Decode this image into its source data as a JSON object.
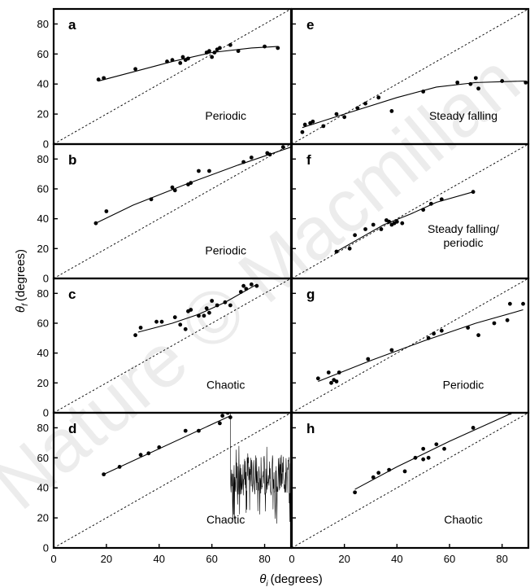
{
  "figure": {
    "ylabel_main": "θ",
    "ylabel_sub": "f",
    "ylabel_unit": "(degrees)",
    "xlabel_main": "θ",
    "xlabel_sub": "i",
    "xlabel_unit": "(degrees)",
    "watermark": "Nature © Macmillan"
  },
  "chart_data": [
    {
      "panel": "a",
      "type": "scatter",
      "label": "Periodic",
      "xlim": [
        0,
        90
      ],
      "ylim": [
        0,
        90
      ],
      "yticks": [
        "0",
        "20",
        "40",
        "60",
        "80"
      ],
      "xticks": [],
      "points": [
        [
          17,
          43
        ],
        [
          19,
          44
        ],
        [
          31,
          50
        ],
        [
          43,
          55
        ],
        [
          45,
          56
        ],
        [
          48,
          54
        ],
        [
          49,
          58
        ],
        [
          50,
          56
        ],
        [
          51,
          57
        ],
        [
          58,
          61
        ],
        [
          59,
          62
        ],
        [
          60,
          58
        ],
        [
          61,
          61
        ],
        [
          62,
          63
        ],
        [
          63,
          64
        ],
        [
          67,
          66
        ],
        [
          70,
          62
        ],
        [
          80,
          65
        ],
        [
          85,
          64
        ]
      ],
      "fit": [
        [
          17,
          42
        ],
        [
          30,
          48
        ],
        [
          45,
          55
        ],
        [
          60,
          61
        ],
        [
          75,
          64
        ],
        [
          85,
          65
        ]
      ],
      "diagonal": true
    },
    {
      "panel": "e",
      "type": "scatter",
      "label": "Steady falling",
      "xlim": [
        0,
        90
      ],
      "ylim": [
        0,
        90
      ],
      "yticks": [],
      "xticks": [],
      "points": [
        [
          4,
          8
        ],
        [
          5,
          13
        ],
        [
          7,
          14
        ],
        [
          8,
          15
        ],
        [
          12,
          12
        ],
        [
          17,
          20
        ],
        [
          20,
          18
        ],
        [
          25,
          24
        ],
        [
          28,
          27
        ],
        [
          33,
          31
        ],
        [
          38,
          22
        ],
        [
          50,
          35
        ],
        [
          63,
          41
        ],
        [
          68,
          40
        ],
        [
          70,
          44
        ],
        [
          71,
          37
        ],
        [
          80,
          42
        ],
        [
          89,
          41
        ]
      ],
      "fit": [
        [
          4,
          11
        ],
        [
          20,
          20
        ],
        [
          40,
          31
        ],
        [
          55,
          38
        ],
        [
          70,
          41
        ],
        [
          89,
          42
        ]
      ],
      "diagonal": true
    },
    {
      "panel": "b",
      "type": "scatter",
      "label": "Periodic",
      "xlim": [
        0,
        90
      ],
      "ylim": [
        0,
        90
      ],
      "yticks": [
        "0",
        "20",
        "40",
        "60",
        "80"
      ],
      "xticks": [],
      "points": [
        [
          16,
          37
        ],
        [
          20,
          45
        ],
        [
          37,
          53
        ],
        [
          45,
          61
        ],
        [
          46,
          59
        ],
        [
          51,
          63
        ],
        [
          52,
          64
        ],
        [
          55,
          72
        ],
        [
          59,
          72
        ],
        [
          72,
          78
        ],
        [
          75,
          81
        ],
        [
          81,
          84
        ],
        [
          82,
          83
        ],
        [
          87,
          88
        ]
      ],
      "fit": [
        [
          16,
          37
        ],
        [
          30,
          49
        ],
        [
          50,
          63
        ],
        [
          70,
          76
        ],
        [
          90,
          88
        ]
      ],
      "diagonal": true
    },
    {
      "panel": "f",
      "type": "scatter",
      "label": "Steady falling/\nperiodic",
      "xlim": [
        0,
        90
      ],
      "ylim": [
        0,
        90
      ],
      "yticks": [],
      "xticks": [],
      "points": [
        [
          17,
          18
        ],
        [
          22,
          20
        ],
        [
          24,
          29
        ],
        [
          28,
          33
        ],
        [
          31,
          36
        ],
        [
          34,
          33
        ],
        [
          36,
          39
        ],
        [
          37,
          38
        ],
        [
          38,
          36
        ],
        [
          39,
          37
        ],
        [
          40,
          38
        ],
        [
          42,
          37
        ],
        [
          50,
          46
        ],
        [
          53,
          50
        ],
        [
          57,
          53
        ],
        [
          69,
          58
        ]
      ],
      "fit": [
        [
          17,
          18
        ],
        [
          25,
          26
        ],
        [
          35,
          36
        ],
        [
          45,
          43
        ],
        [
          55,
          51
        ],
        [
          69,
          58
        ]
      ],
      "diagonal": true
    },
    {
      "panel": "c",
      "type": "scatter",
      "label": "Chaotic",
      "xlim": [
        0,
        90
      ],
      "ylim": [
        0,
        90
      ],
      "yticks": [
        "0",
        "20",
        "40",
        "60",
        "80"
      ],
      "xticks": [],
      "points": [
        [
          31,
          52
        ],
        [
          33,
          57
        ],
        [
          39,
          61
        ],
        [
          41,
          61
        ],
        [
          46,
          64
        ],
        [
          48,
          59
        ],
        [
          50,
          56
        ],
        [
          51,
          68
        ],
        [
          52,
          69
        ],
        [
          55,
          65
        ],
        [
          57,
          65
        ],
        [
          58,
          70
        ],
        [
          59,
          67
        ],
        [
          60,
          75
        ],
        [
          62,
          72
        ],
        [
          65,
          74
        ],
        [
          67,
          72
        ],
        [
          71,
          81
        ],
        [
          72,
          85
        ],
        [
          73,
          83
        ],
        [
          75,
          86
        ],
        [
          77,
          85
        ]
      ],
      "fit": [
        [
          32,
          54
        ],
        [
          45,
          60
        ],
        [
          55,
          66
        ],
        [
          65,
          74
        ],
        [
          77,
          86
        ]
      ],
      "diagonal": true
    },
    {
      "panel": "g",
      "type": "scatter",
      "label": "Periodic",
      "xlim": [
        0,
        90
      ],
      "ylim": [
        0,
        90
      ],
      "yticks": [],
      "xticks": [],
      "points": [
        [
          10,
          23
        ],
        [
          14,
          27
        ],
        [
          15,
          20
        ],
        [
          16,
          22
        ],
        [
          17,
          21
        ],
        [
          18,
          27
        ],
        [
          29,
          36
        ],
        [
          38,
          42
        ],
        [
          52,
          50
        ],
        [
          54,
          53
        ],
        [
          57,
          55
        ],
        [
          67,
          57
        ],
        [
          71,
          52
        ],
        [
          77,
          60
        ],
        [
          82,
          62
        ],
        [
          83,
          73
        ],
        [
          88,
          73
        ]
      ],
      "fit": [
        [
          10,
          21
        ],
        [
          30,
          35
        ],
        [
          50,
          48
        ],
        [
          70,
          60
        ],
        [
          88,
          69
        ]
      ],
      "diagonal": true
    },
    {
      "panel": "d",
      "type": "scatter",
      "label": "Chaotic",
      "xlim": [
        0,
        90
      ],
      "ylim": [
        0,
        90
      ],
      "yticks": [
        "0",
        "20",
        "40",
        "60",
        "80"
      ],
      "xticks": [
        "0",
        "20",
        "40",
        "60",
        "80"
      ],
      "points": [
        [
          19,
          49
        ],
        [
          25,
          54
        ],
        [
          33,
          62
        ],
        [
          36,
          63
        ],
        [
          40,
          67
        ],
        [
          50,
          78
        ],
        [
          55,
          78
        ],
        [
          63,
          83
        ],
        [
          64,
          88
        ],
        [
          66,
          90
        ],
        [
          67,
          87
        ]
      ],
      "fit": [
        [
          19,
          49
        ],
        [
          67,
          88
        ]
      ],
      "trace": {
        "x_start": 67,
        "x_end": 90,
        "y_min": 16,
        "y_max": 68
      },
      "diagonal": true
    },
    {
      "panel": "h",
      "type": "scatter",
      "label": "Chaotic",
      "xlim": [
        0,
        90
      ],
      "ylim": [
        0,
        90
      ],
      "yticks": [],
      "xticks": [
        "0",
        "20",
        "40",
        "60",
        "80"
      ],
      "points": [
        [
          24,
          37
        ],
        [
          31,
          47
        ],
        [
          33,
          50
        ],
        [
          37,
          52
        ],
        [
          43,
          51
        ],
        [
          47,
          60
        ],
        [
          50,
          59
        ],
        [
          50,
          66
        ],
        [
          52,
          60
        ],
        [
          55,
          69
        ],
        [
          58,
          66
        ],
        [
          69,
          80
        ],
        [
          83,
          90
        ]
      ],
      "fit": [
        [
          24,
          39
        ],
        [
          40,
          54
        ],
        [
          60,
          71
        ],
        [
          84,
          90
        ]
      ],
      "diagonal": true
    }
  ]
}
